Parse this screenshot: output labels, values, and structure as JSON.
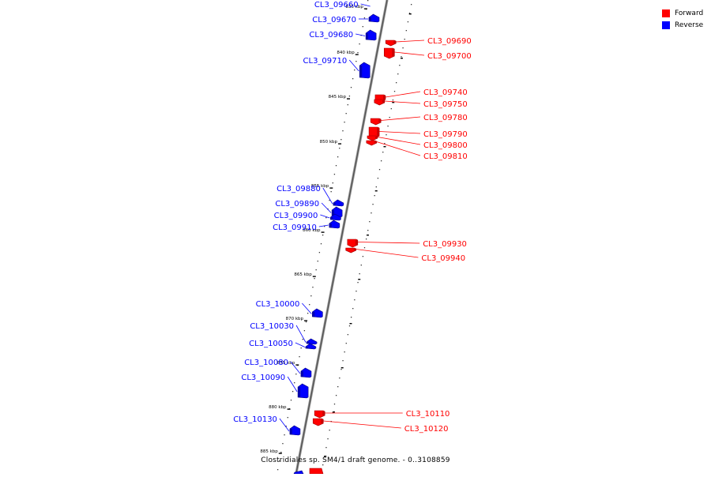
{
  "legend": {
    "forward_label": "Forward",
    "reverse_label": "Reverse",
    "forward_color": "#ff0000",
    "reverse_color": "#0000ff"
  },
  "caption": "Clostridiales sp. SM4/1 draft genome. - 0..3108859",
  "ruler": [
    "835 kbp",
    "840 kbp",
    "845 kbp",
    "850 kbp",
    "855 kbp",
    "860 kbp",
    "865 kbp",
    "870 kbp",
    "875 kbp",
    "880 kbp",
    "885 kbp"
  ],
  "genes": [
    {
      "label": "CL3_09660",
      "strand": "reverse"
    },
    {
      "label": "CL3_09670",
      "strand": "reverse"
    },
    {
      "label": "CL3_09680",
      "strand": "reverse"
    },
    {
      "label": "CL3_09690",
      "strand": "forward"
    },
    {
      "label": "CL3_09700",
      "strand": "forward"
    },
    {
      "label": "CL3_09710",
      "strand": "reverse"
    },
    {
      "label": "CL3_09740",
      "strand": "forward"
    },
    {
      "label": "CL3_09750",
      "strand": "forward"
    },
    {
      "label": "CL3_09780",
      "strand": "forward"
    },
    {
      "label": "CL3_09790",
      "strand": "forward"
    },
    {
      "label": "CL3_09800",
      "strand": "forward"
    },
    {
      "label": "CL3_09810",
      "strand": "forward"
    },
    {
      "label": "CL3_09880",
      "strand": "reverse"
    },
    {
      "label": "CL3_09890",
      "strand": "reverse"
    },
    {
      "label": "CL3_09900",
      "strand": "reverse"
    },
    {
      "label": "CL3_09910",
      "strand": "reverse"
    },
    {
      "label": "CL3_09930",
      "strand": "forward"
    },
    {
      "label": "CL3_09940",
      "strand": "forward"
    },
    {
      "label": "CL3_10000",
      "strand": "reverse"
    },
    {
      "label": "CL3_10030",
      "strand": "reverse"
    },
    {
      "label": "CL3_10050",
      "strand": "reverse"
    },
    {
      "label": "CL3_10080",
      "strand": "reverse"
    },
    {
      "label": "CL3_10090",
      "strand": "reverse"
    },
    {
      "label": "CL3_10110",
      "strand": "forward"
    },
    {
      "label": "CL3_10120",
      "strand": "forward"
    },
    {
      "label": "CL3_10130",
      "strand": "reverse"
    }
  ]
}
